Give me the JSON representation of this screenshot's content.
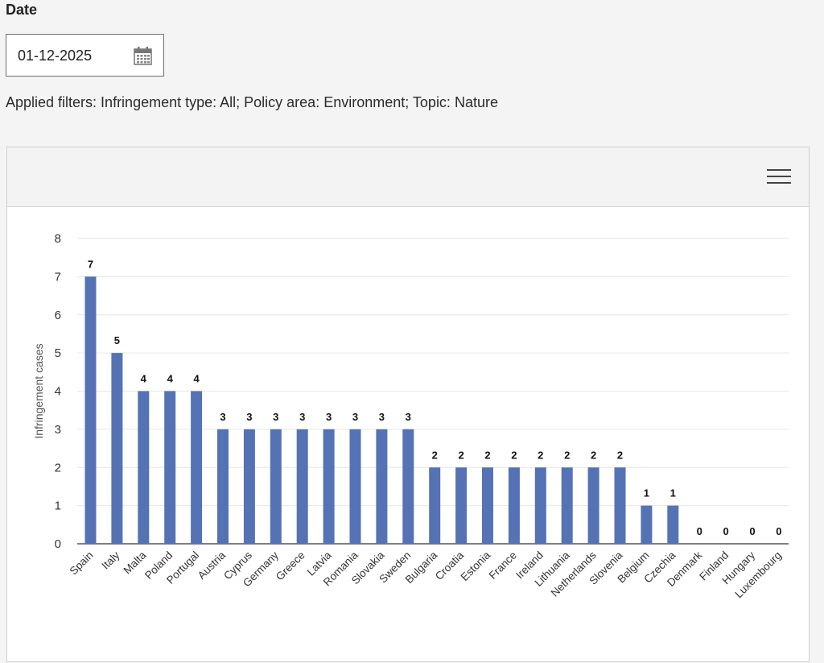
{
  "date_filter": {
    "label": "Date",
    "value": "01-12-2025"
  },
  "applied_filters": "Applied filters: Infringement type: All; Policy area: Environment; Topic: Nature",
  "chart_data": {
    "type": "bar",
    "title": "",
    "xlabel": "",
    "ylabel": "Infringement cases",
    "ylim": [
      0,
      8
    ],
    "yticks": [
      0,
      1,
      2,
      3,
      4,
      5,
      6,
      7,
      8
    ],
    "grid": true,
    "color": "#5572b4",
    "categories": [
      "Spain",
      "Italy",
      "Malta",
      "Poland",
      "Portugal",
      "Austria",
      "Cyprus",
      "Germany",
      "Greece",
      "Latvia",
      "Romania",
      "Slovakia",
      "Sweden",
      "Bulgaria",
      "Croatia",
      "Estonia",
      "France",
      "Ireland",
      "Lithuania",
      "Netherlands",
      "Slovenia",
      "Belgium",
      "Czechia",
      "Denmark",
      "Finland",
      "Hungary",
      "Luxembourg"
    ],
    "values": [
      7,
      5,
      4,
      4,
      4,
      3,
      3,
      3,
      3,
      3,
      3,
      3,
      3,
      2,
      2,
      2,
      2,
      2,
      2,
      2,
      2,
      1,
      1,
      0,
      0,
      0,
      0
    ]
  },
  "icons": {
    "calendar": "calendar-icon",
    "menu": "hamburger-menu-icon"
  }
}
